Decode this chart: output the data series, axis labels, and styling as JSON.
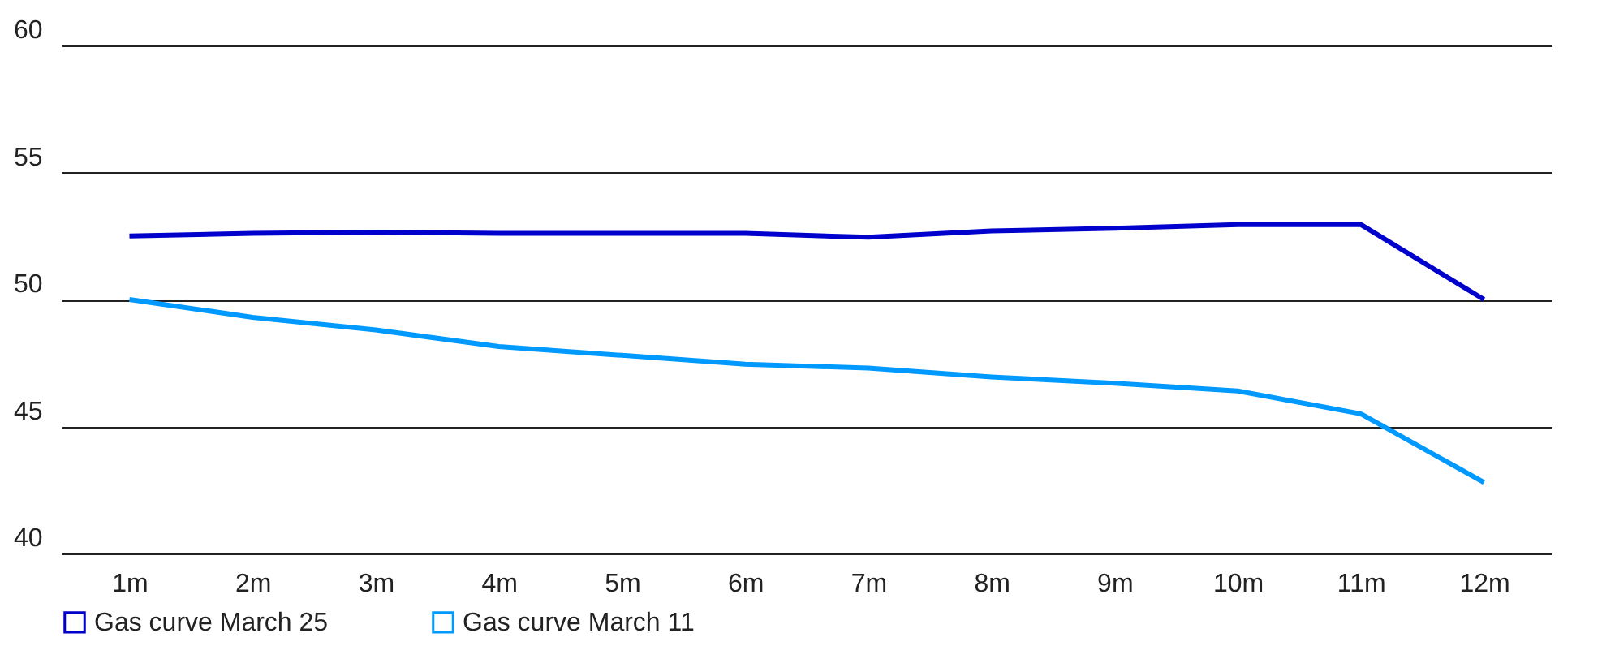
{
  "chart_data": {
    "type": "line",
    "categories": [
      "1m",
      "2m",
      "3m",
      "4m",
      "5m",
      "6m",
      "7m",
      "8m",
      "9m",
      "10m",
      "11m",
      "12m"
    ],
    "series": [
      {
        "name": "Gas curve March 25",
        "color": "#0000cc",
        "values": [
          52.5,
          52.6,
          52.65,
          52.6,
          52.6,
          52.6,
          52.45,
          52.7,
          52.8,
          52.95,
          52.95,
          50
        ]
      },
      {
        "name": "Gas curve March 11",
        "color": "#0099ff",
        "values": [
          50,
          49.3,
          48.8,
          48.15,
          47.8,
          47.45,
          47.3,
          46.95,
          46.7,
          46.4,
          45.5,
          42.8
        ]
      }
    ],
    "ylim": [
      40,
      60
    ],
    "yticks": [
      40,
      45,
      50,
      55,
      60
    ],
    "grid": "y",
    "legend": "bottom left",
    "marker": "none",
    "line_style": "solid"
  }
}
